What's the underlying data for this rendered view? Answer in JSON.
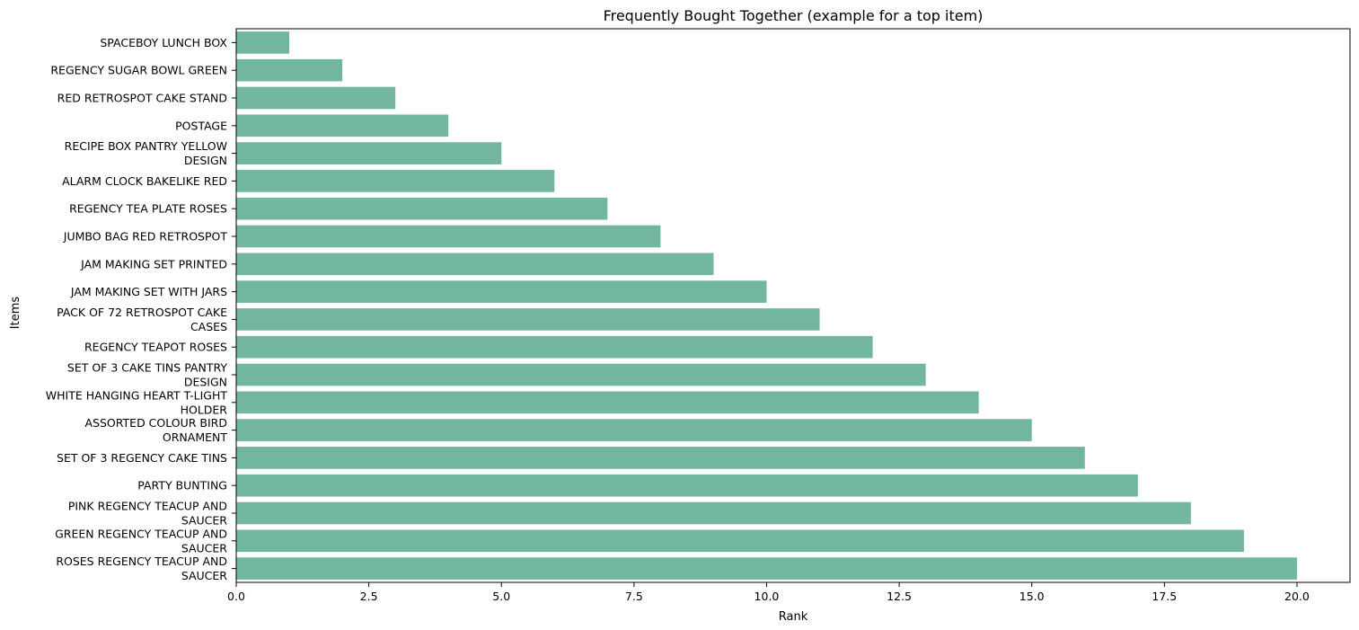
{
  "chart_data": {
    "type": "bar",
    "orientation": "horizontal",
    "title": "Frequently Bought Together (example for a top item)",
    "xlabel": "Rank",
    "ylabel": "Items",
    "xlim": [
      0,
      21
    ],
    "xticks": [
      0,
      2.5,
      5,
      7.5,
      10,
      12.5,
      15,
      17.5,
      20
    ],
    "xtick_labels": [
      "0.0",
      "2.5",
      "5.0",
      "7.5",
      "10.0",
      "12.5",
      "15.0",
      "17.5",
      "20.0"
    ],
    "bar_color": "#73b6a0",
    "grid": false,
    "categories": [
      [
        "SPACEBOY LUNCH BOX"
      ],
      [
        "REGENCY SUGAR BOWL GREEN"
      ],
      [
        "RED RETROSPOT CAKE STAND"
      ],
      [
        "POSTAGE"
      ],
      [
        "RECIPE BOX PANTRY YELLOW",
        "DESIGN"
      ],
      [
        "ALARM CLOCK BAKELIKE RED"
      ],
      [
        "REGENCY TEA PLATE ROSES"
      ],
      [
        "JUMBO BAG RED RETROSPOT"
      ],
      [
        "JAM MAKING SET PRINTED"
      ],
      [
        "JAM MAKING SET WITH JARS"
      ],
      [
        "PACK OF 72 RETROSPOT CAKE",
        "CASES"
      ],
      [
        "REGENCY TEAPOT ROSES"
      ],
      [
        "SET OF 3 CAKE TINS PANTRY",
        "DESIGN"
      ],
      [
        "WHITE HANGING HEART T-LIGHT",
        "HOLDER"
      ],
      [
        "ASSORTED COLOUR BIRD",
        "ORNAMENT"
      ],
      [
        "SET OF 3 REGENCY CAKE TINS"
      ],
      [
        "PARTY BUNTING"
      ],
      [
        "PINK REGENCY TEACUP AND",
        "SAUCER"
      ],
      [
        "GREEN REGENCY TEACUP AND",
        "SAUCER"
      ],
      [
        "ROSES REGENCY TEACUP AND",
        "SAUCER"
      ]
    ],
    "values": [
      1,
      2,
      3,
      4,
      5,
      6,
      7,
      8,
      9,
      10,
      11,
      12,
      13,
      14,
      15,
      16,
      17,
      18,
      19,
      20
    ]
  }
}
